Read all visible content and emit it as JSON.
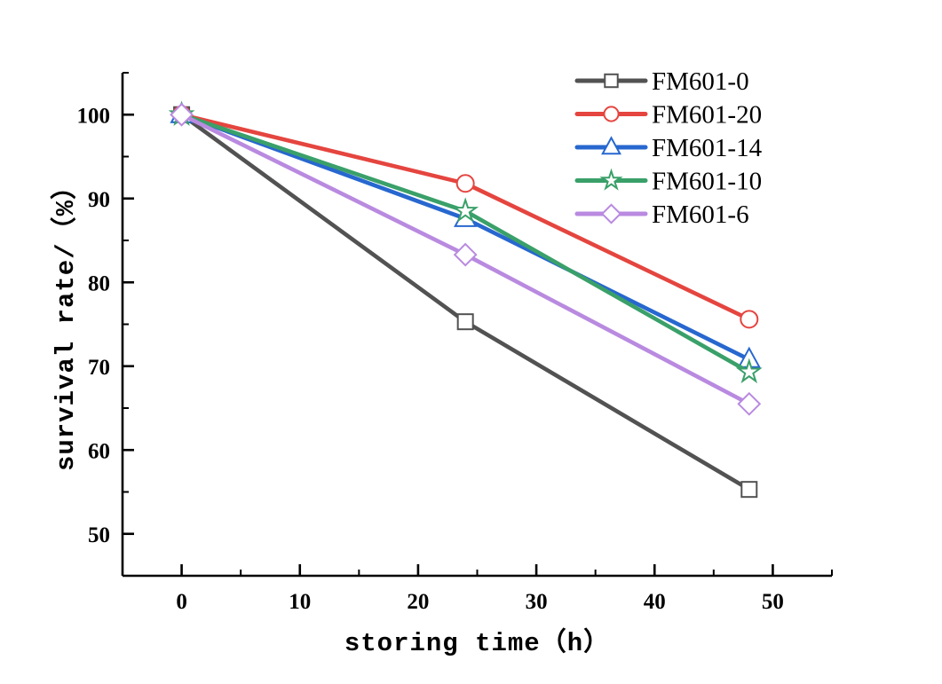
{
  "chart_data": {
    "type": "line",
    "title": "",
    "xlabel": "storing time（h）",
    "ylabel": "survival rate/（%）",
    "x": [
      0,
      24,
      48
    ],
    "series": [
      {
        "name": "FM601-0",
        "color": "#525252",
        "marker": "square",
        "values": [
          100,
          75.3,
          55.3
        ]
      },
      {
        "name": "FM601-20",
        "color": "#e5453f",
        "marker": "circle",
        "values": [
          100,
          91.8,
          75.6
        ]
      },
      {
        "name": "FM601-14",
        "color": "#2767cf",
        "marker": "triangle",
        "values": [
          100,
          87.6,
          70.8
        ]
      },
      {
        "name": "FM601-10",
        "color": "#3aa069",
        "marker": "star",
        "values": [
          100,
          88.5,
          69.3
        ]
      },
      {
        "name": "FM601-6",
        "color": "#b98ae0",
        "marker": "diamond",
        "values": [
          100,
          83.3,
          65.5
        ]
      }
    ],
    "xlim": [
      -5,
      55
    ],
    "ylim": [
      45,
      105
    ],
    "xticks": [
      0,
      10,
      20,
      30,
      40,
      50
    ],
    "yticks": [
      50,
      60,
      70,
      80,
      90,
      100
    ],
    "minor_xticks": [
      5,
      15,
      25,
      35,
      45,
      55
    ],
    "minor_yticks": [
      55,
      65,
      75,
      85,
      95,
      105
    ],
    "grid": false,
    "legend_position": "top-right",
    "axis_color": "#000000",
    "background": "#ffffff"
  }
}
